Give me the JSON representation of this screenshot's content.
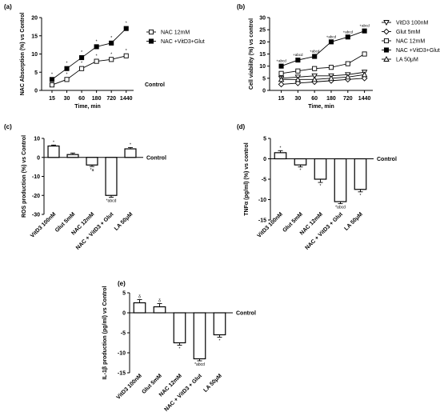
{
  "chart_data": [
    {
      "panel": "(a)",
      "type": "line",
      "ylabel": "NAC Absorption (%) vs Control",
      "xlabel": "Time, min",
      "control_label": "Control",
      "yticks": [
        0,
        5,
        10,
        15,
        20
      ],
      "ylim": [
        0,
        20
      ],
      "categories": [
        "15",
        "30",
        "60",
        "180",
        "720",
        "1440"
      ],
      "series": [
        {
          "name": "NAC 12mM",
          "marker": "square-open",
          "values": [
            1.5,
            3,
            6,
            8,
            8.5,
            9.5
          ],
          "annotations": [
            "*",
            "*",
            "*",
            "*",
            "*",
            "*"
          ]
        },
        {
          "name": "NAC +VitD3+Glut",
          "marker": "square-filled",
          "values": [
            3,
            6,
            9,
            12,
            13,
            17
          ],
          "annotations": [
            "*",
            "*",
            "*",
            "*",
            "*",
            "*"
          ]
        }
      ]
    },
    {
      "panel": "(b)",
      "type": "line",
      "ylabel": "Cell viability (%) vs control",
      "xlabel": "Time, min",
      "yticks": [
        0,
        5,
        10,
        15,
        20,
        25,
        30
      ],
      "ylim": [
        0,
        30
      ],
      "categories": [
        "15",
        "30",
        "60",
        "180",
        "720",
        "1440"
      ],
      "series": [
        {
          "name": "VitD3 100nM",
          "marker": "triangle-down-open",
          "values": [
            5,
            5.5,
            6,
            6,
            6.5,
            7.5
          ]
        },
        {
          "name": "Glut 5mM",
          "marker": "diamond-open",
          "values": [
            2.5,
            3,
            3.5,
            4,
            4.5,
            5
          ]
        },
        {
          "name": "NAC 12mM",
          "marker": "square-open",
          "values": [
            7,
            8,
            9,
            9.5,
            11,
            15
          ]
        },
        {
          "name": "NAC +VitD3+Glut",
          "marker": "square-filled",
          "values": [
            10,
            12.5,
            14,
            20,
            22,
            24.5
          ]
        },
        {
          "name": "LA 50μM",
          "marker": "triangle-up-open",
          "values": [
            4.5,
            4.5,
            4.5,
            5,
            5.5,
            6.5
          ]
        }
      ],
      "annotations_top": [
        "+abcd",
        "+abcd",
        "+abcd",
        "+abcd",
        "+abcd",
        "+abcd"
      ]
    },
    {
      "panel": "(c)",
      "type": "bar",
      "ylabel": "ROS production (%) vs Control",
      "control_label": "Control",
      "yticks": [
        10,
        0,
        -10,
        -20,
        -30
      ],
      "ylim": [
        -30,
        10
      ],
      "categories": [
        "VitD3 100nM",
        "Glut 5mM",
        "NAC 12mM",
        "NAC + VitD3 + Glut",
        "LA 50μM"
      ],
      "values": [
        6,
        1.5,
        -4,
        -20,
        4.5
      ],
      "errors": [
        0.5,
        0.8,
        0.8,
        1,
        0.7
      ],
      "annotations": [
        "*",
        "",
        "*a",
        "*abcd",
        "*"
      ]
    },
    {
      "panel": "(d)",
      "type": "bar",
      "ylabel": "TNFα (pg/ml) (%) vs control",
      "control_label": "Control",
      "yticks": [
        5,
        0,
        -5,
        -10,
        -15
      ],
      "ylim": [
        -15,
        5
      ],
      "categories": [
        "VitD3 100nM",
        "Glut 5mM",
        "NAC 12mM",
        "NAC + VitD3 + Glut",
        "LA 50μM"
      ],
      "values": [
        1.5,
        -1.5,
        -5,
        -10.5,
        -7.5
      ],
      "errors": [
        0.5,
        0.5,
        0.8,
        0.5,
        0.6
      ],
      "annotations": [
        "*",
        "*",
        "*",
        "*abcd",
        "*"
      ]
    },
    {
      "panel": "(e)",
      "type": "bar",
      "ylabel": "IL-1β production (pg/ml) vs  Control",
      "control_label": "Control",
      "yticks": [
        5,
        0,
        -5,
        -10,
        -15
      ],
      "ylim": [
        -15,
        5
      ],
      "categories": [
        "VitD3 100nM",
        "Glut 5mM",
        "NAC 12mM",
        "NAC + VitD3 + Glut",
        "LA 50μM"
      ],
      "values": [
        2.5,
        1.5,
        -7.5,
        -11.5,
        -5.5
      ],
      "errors": [
        0.8,
        0.8,
        0.6,
        0.5,
        0.6
      ],
      "annotations": [
        "δ",
        "δ",
        "*",
        "*abcd",
        "*"
      ]
    }
  ]
}
